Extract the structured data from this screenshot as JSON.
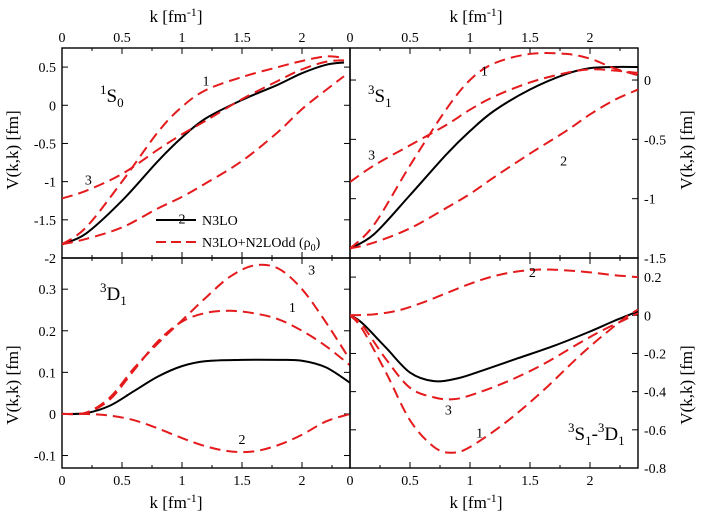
{
  "figure": {
    "x_axis_title": "k [fm",
    "x_axis_title_sup": "-1",
    "x_axis_title_end": "]",
    "y_axis_title": "V(k,k) [fm]",
    "legend": [
      {
        "label": "N3LO",
        "color": "#000000",
        "dashed": false
      },
      {
        "label": "N3LO+N2LOdd (ρ",
        "sub": "0",
        "end": ")",
        "color": "#e41a1c",
        "dashed": true
      }
    ]
  },
  "chart_data": [
    {
      "type": "line",
      "id": "1S0",
      "label_sup": "1",
      "label_main": "S",
      "label_sub": "0",
      "xlim": [
        0,
        2.4
      ],
      "ylim": [
        -2.0,
        0.75
      ],
      "xticks": [
        0,
        0.5,
        1,
        1.5,
        2
      ],
      "xtick_labels": [
        "0",
        "0.5",
        "1",
        "1.5",
        "2"
      ],
      "yticks": [
        -2,
        -1.5,
        -1,
        -0.5,
        0,
        0.5
      ],
      "ytick_labels": [
        "-2",
        "-1.5",
        "-1",
        "-0.5",
        "0",
        "0.5"
      ],
      "series": [
        {
          "name": "N3LO",
          "style": "solid",
          "x": [
            0,
            0.2,
            0.5,
            0.8,
            1.0,
            1.2,
            1.5,
            1.8,
            2.0,
            2.2,
            2.35
          ],
          "y": [
            -1.82,
            -1.68,
            -1.25,
            -0.73,
            -0.42,
            -0.17,
            0.07,
            0.27,
            0.42,
            0.53,
            0.56
          ]
        },
        {
          "name": "1",
          "style": "dashed",
          "x": [
            0,
            0.2,
            0.5,
            0.8,
            1.0,
            1.2,
            1.5,
            1.8,
            2.0,
            2.2,
            2.35
          ],
          "y": [
            -1.82,
            -1.6,
            -1.0,
            -0.35,
            -0.02,
            0.2,
            0.37,
            0.5,
            0.58,
            0.64,
            0.62
          ]
        },
        {
          "name": "2",
          "style": "dashed",
          "x": [
            0,
            0.2,
            0.5,
            0.8,
            1.0,
            1.2,
            1.5,
            1.8,
            2.0,
            2.2,
            2.35
          ],
          "y": [
            -1.82,
            -1.75,
            -1.6,
            -1.35,
            -1.2,
            -1.02,
            -0.73,
            -0.35,
            -0.05,
            0.2,
            0.38
          ]
        },
        {
          "name": "3",
          "style": "dashed",
          "x": [
            0,
            0.2,
            0.5,
            0.8,
            1.0,
            1.2,
            1.5,
            1.8,
            2.0,
            2.2,
            2.35
          ],
          "y": [
            -1.22,
            -1.12,
            -0.9,
            -0.58,
            -0.38,
            -0.2,
            0.08,
            0.32,
            0.47,
            0.57,
            0.59
          ]
        }
      ],
      "curve_labels": [
        {
          "text": "1",
          "x": 1.2,
          "y": 0.26
        },
        {
          "text": "2",
          "x": 1.0,
          "y": -1.55
        },
        {
          "text": "3",
          "x": 0.22,
          "y": -1.04
        }
      ]
    },
    {
      "type": "line",
      "id": "3S1",
      "label_sup": "3",
      "label_main": "S",
      "label_sub": "1",
      "xlim": [
        0,
        2.4
      ],
      "ylim": [
        -1.5,
        0.27
      ],
      "xticks": [
        0,
        0.5,
        1,
        1.5,
        2
      ],
      "xtick_labels": [
        "0",
        "0.5",
        "1",
        "1.5",
        "2"
      ],
      "yticks": [
        -1.5,
        -1,
        -0.5,
        0
      ],
      "ytick_labels": [
        "-1.5",
        "-1",
        "-0.5",
        "0"
      ],
      "series": [
        {
          "name": "N3LO",
          "style": "solid",
          "x": [
            0,
            0.2,
            0.5,
            0.8,
            1.0,
            1.2,
            1.5,
            1.8,
            2.0,
            2.2,
            2.4
          ],
          "y": [
            -1.42,
            -1.3,
            -0.97,
            -0.63,
            -0.43,
            -0.26,
            -0.08,
            0.05,
            0.1,
            0.11,
            0.11
          ]
        },
        {
          "name": "1",
          "style": "dashed",
          "x": [
            0,
            0.2,
            0.5,
            0.8,
            1.0,
            1.2,
            1.5,
            1.8,
            2.0,
            2.2,
            2.4
          ],
          "y": [
            -1.42,
            -1.22,
            -0.72,
            -0.25,
            0.0,
            0.14,
            0.22,
            0.22,
            0.18,
            0.1,
            0.04
          ]
        },
        {
          "name": "2",
          "style": "dashed",
          "x": [
            0,
            0.2,
            0.5,
            0.8,
            1.0,
            1.2,
            1.5,
            1.8,
            2.0,
            2.2,
            2.4
          ],
          "y": [
            -1.42,
            -1.37,
            -1.25,
            -1.08,
            -0.96,
            -0.82,
            -0.62,
            -0.43,
            -0.29,
            -0.17,
            -0.08
          ]
        },
        {
          "name": "3",
          "style": "dashed",
          "x": [
            0,
            0.2,
            0.5,
            0.8,
            1.0,
            1.2,
            1.5,
            1.8,
            2.0,
            2.2,
            2.4
          ],
          "y": [
            -0.86,
            -0.72,
            -0.55,
            -0.38,
            -0.25,
            -0.14,
            -0.02,
            0.06,
            0.09,
            0.08,
            0.06
          ]
        }
      ],
      "curve_labels": [
        {
          "text": "1",
          "x": 1.12,
          "y": 0.04
        },
        {
          "text": "2",
          "x": 1.78,
          "y": -0.72
        },
        {
          "text": "3",
          "x": 0.18,
          "y": -0.67
        }
      ]
    },
    {
      "type": "line",
      "id": "3D1",
      "label_sup": "3",
      "label_main": "D",
      "label_sub": "1",
      "xlim": [
        0,
        2.4
      ],
      "ylim": [
        -0.13,
        0.375
      ],
      "xticks": [
        0,
        0.5,
        1,
        1.5,
        2
      ],
      "xtick_labels": [
        "0",
        "0.5",
        "1",
        "1.5",
        "2"
      ],
      "yticks": [
        -0.1,
        0,
        0.1,
        0.2,
        0.3
      ],
      "ytick_labels": [
        "-0.1",
        "0",
        "0.1",
        "0.2",
        "0.3"
      ],
      "series": [
        {
          "name": "N3LO",
          "style": "solid",
          "x": [
            0,
            0.2,
            0.4,
            0.6,
            0.8,
            1.0,
            1.2,
            1.5,
            1.8,
            2.0,
            2.2,
            2.4
          ],
          "y": [
            0,
            0.002,
            0.02,
            0.055,
            0.09,
            0.115,
            0.127,
            0.13,
            0.13,
            0.128,
            0.112,
            0.075
          ]
        },
        {
          "name": "1",
          "style": "dashed",
          "x": [
            0,
            0.2,
            0.4,
            0.6,
            0.8,
            1.0,
            1.2,
            1.4,
            1.6,
            1.8,
            2.0,
            2.2,
            2.4
          ],
          "y": [
            0,
            0.003,
            0.035,
            0.105,
            0.175,
            0.222,
            0.243,
            0.248,
            0.242,
            0.228,
            0.2,
            0.163,
            0.117
          ]
        },
        {
          "name": "2",
          "style": "dashed",
          "x": [
            0,
            0.2,
            0.4,
            0.6,
            0.8,
            1.0,
            1.2,
            1.4,
            1.6,
            1.8,
            2.0,
            2.2,
            2.4
          ],
          "y": [
            0,
            0.0,
            -0.004,
            -0.015,
            -0.035,
            -0.058,
            -0.078,
            -0.09,
            -0.09,
            -0.075,
            -0.05,
            -0.018,
            0.0
          ]
        },
        {
          "name": "3",
          "style": "dashed",
          "x": [
            0,
            0.2,
            0.4,
            0.6,
            0.8,
            1.0,
            1.2,
            1.4,
            1.6,
            1.8,
            2.0,
            2.2,
            2.4
          ],
          "y": [
            0,
            0.003,
            0.04,
            0.11,
            0.17,
            0.225,
            0.28,
            0.33,
            0.357,
            0.35,
            0.3,
            0.22,
            0.13
          ]
        }
      ],
      "curve_labels": [
        {
          "text": "1",
          "x": 1.92,
          "y": 0.245
        },
        {
          "text": "2",
          "x": 1.5,
          "y": -0.072
        },
        {
          "text": "3",
          "x": 2.08,
          "y": 0.335
        }
      ]
    },
    {
      "type": "line",
      "id": "3S1-3D1",
      "label_sup": "3",
      "label_main": "S",
      "label_sub": "1",
      "label2_sup": "3",
      "label2_main": "D",
      "label2_sub": "1",
      "xlim": [
        0,
        2.4
      ],
      "ylim": [
        -0.8,
        0.3
      ],
      "xticks": [
        0,
        0.5,
        1,
        1.5,
        2
      ],
      "xtick_labels": [
        "0",
        "0.5",
        "1",
        "1.5",
        "2"
      ],
      "yticks": [
        -0.8,
        -0.6,
        -0.4,
        -0.2,
        0,
        0.2
      ],
      "ytick_labels": [
        "-0.8",
        "-0.6",
        "-0.4",
        "-0.2",
        "0",
        "0.2"
      ],
      "series": [
        {
          "name": "N3LO",
          "style": "solid",
          "x": [
            0,
            0.1,
            0.3,
            0.5,
            0.7,
            0.9,
            1.1,
            1.4,
            1.7,
            2.0,
            2.2,
            2.4
          ],
          "y": [
            0,
            -0.04,
            -0.17,
            -0.3,
            -0.345,
            -0.33,
            -0.29,
            -0.225,
            -0.16,
            -0.085,
            -0.03,
            0.02
          ]
        },
        {
          "name": "1",
          "style": "dashed",
          "x": [
            0,
            0.1,
            0.3,
            0.5,
            0.7,
            0.85,
            1.0,
            1.3,
            1.6,
            1.9,
            2.1,
            2.3,
            2.4
          ],
          "y": [
            0,
            -0.07,
            -0.3,
            -0.55,
            -0.69,
            -0.72,
            -0.69,
            -0.56,
            -0.4,
            -0.22,
            -0.11,
            -0.01,
            0.03
          ]
        },
        {
          "name": "2",
          "style": "dashed",
          "x": [
            0,
            0.2,
            0.4,
            0.6,
            0.8,
            1.0,
            1.2,
            1.4,
            1.6,
            1.8,
            2.0,
            2.2,
            2.4
          ],
          "y": [
            0,
            0.005,
            0.025,
            0.065,
            0.115,
            0.165,
            0.205,
            0.23,
            0.24,
            0.235,
            0.225,
            0.21,
            0.2
          ]
        },
        {
          "name": "3",
          "style": "dashed",
          "x": [
            0,
            0.1,
            0.3,
            0.5,
            0.7,
            0.85,
            1.0,
            1.3,
            1.6,
            1.9,
            2.1,
            2.3,
            2.4
          ],
          "y": [
            0,
            -0.05,
            -0.23,
            -0.38,
            -0.43,
            -0.44,
            -0.42,
            -0.35,
            -0.26,
            -0.15,
            -0.08,
            -0.02,
            0.01
          ]
        }
      ],
      "curve_labels": [
        {
          "text": "1",
          "x": 1.08,
          "y": -0.64
        },
        {
          "text": "2",
          "x": 1.52,
          "y": 0.2
        },
        {
          "text": "3",
          "x": 0.82,
          "y": -0.52
        }
      ]
    }
  ]
}
